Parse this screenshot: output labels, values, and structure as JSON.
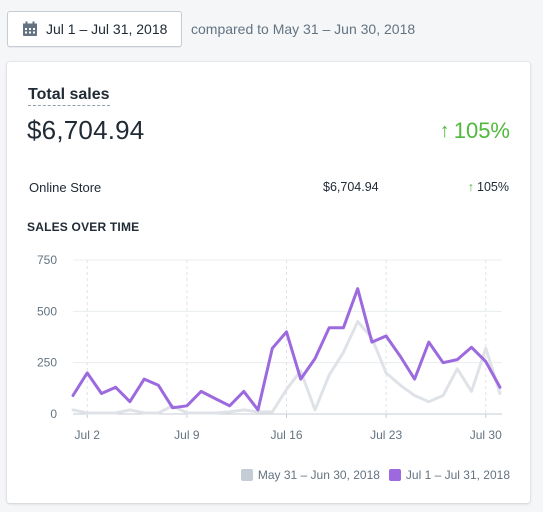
{
  "toolbar": {
    "date_range": "Jul 1 – Jul 31, 2018",
    "compare_text": "compared to May 31 – Jun 30, 2018"
  },
  "card": {
    "title": "Total sales",
    "total": "$6,704.94",
    "change": "105%",
    "change_arrow": "↑",
    "row": {
      "name": "Online Store",
      "value": "$6,704.94",
      "change": "105%",
      "change_arrow": "↑"
    },
    "subheading": "SALES OVER TIME"
  },
  "colors": {
    "current": "#9c6ade",
    "previous": "#dfe3e8",
    "positive": "#50b83c"
  },
  "chart_data": {
    "type": "line",
    "y_ticks": [
      0,
      250,
      500,
      750
    ],
    "ylim": [
      0,
      750
    ],
    "x_ticks": [
      {
        "day": 2,
        "label": "Jul 2"
      },
      {
        "day": 9,
        "label": "Jul 9"
      },
      {
        "day": 16,
        "label": "Jul 16"
      },
      {
        "day": 23,
        "label": "Jul 23"
      },
      {
        "day": 30,
        "label": "Jul 30"
      }
    ],
    "x": [
      1,
      2,
      3,
      4,
      5,
      6,
      7,
      8,
      9,
      10,
      11,
      12,
      13,
      14,
      15,
      16,
      17,
      18,
      19,
      20,
      21,
      22,
      23,
      24,
      25,
      26,
      27,
      28,
      29,
      30,
      31
    ],
    "series": [
      {
        "name": "May 31 – Jun 30, 2018",
        "color": "#dfe3e8",
        "values": [
          20,
          5,
          5,
          5,
          20,
          5,
          5,
          40,
          5,
          5,
          5,
          10,
          20,
          10,
          10,
          120,
          210,
          20,
          190,
          300,
          450,
          370,
          200,
          140,
          90,
          60,
          90,
          220,
          110,
          320,
          100
        ]
      },
      {
        "name": "Jul 1 – Jul 31, 2018",
        "color": "#9c6ade",
        "values": [
          90,
          200,
          100,
          130,
          60,
          170,
          140,
          30,
          40,
          110,
          75,
          40,
          110,
          20,
          320,
          400,
          170,
          270,
          420,
          420,
          610,
          350,
          380,
          280,
          170,
          350,
          250,
          265,
          325,
          255,
          130
        ]
      }
    ],
    "grid": true,
    "legend_position": "bottom-right"
  }
}
